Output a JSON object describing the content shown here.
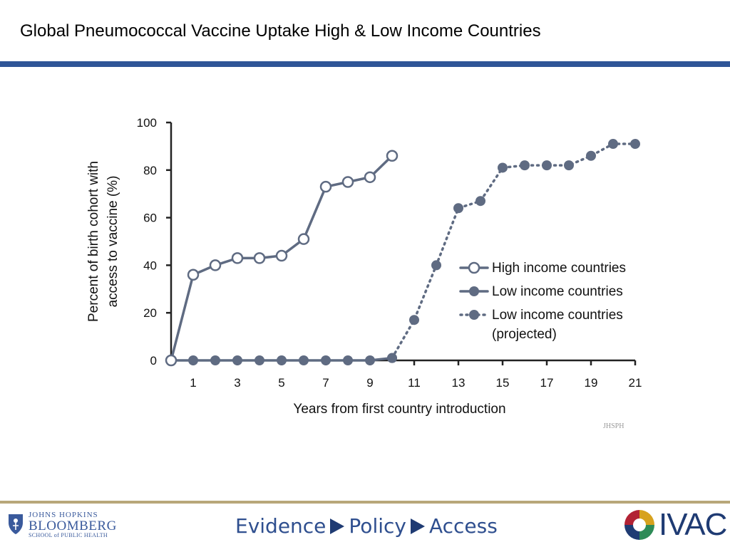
{
  "header": {
    "title": "Global Pneumococcal Vaccine Uptake High & Low Income Countries"
  },
  "chart_data": {
    "type": "line",
    "xlabel": "Years from first country introduction",
    "ylabel_line1": "Percent of birth cohort with",
    "ylabel_line2": "access to vaccine (%)",
    "xlim": [
      0,
      21
    ],
    "ylim": [
      0,
      100
    ],
    "xticks": [
      1,
      3,
      5,
      7,
      9,
      11,
      13,
      15,
      17,
      19,
      21
    ],
    "yticks": [
      0,
      20,
      40,
      60,
      80,
      100
    ],
    "grid": false,
    "legend_position": "right",
    "series": [
      {
        "name": "High income countries",
        "style": "solid-open",
        "color": "#5f6b82",
        "x": [
          0,
          1,
          2,
          3,
          4,
          5,
          6,
          7,
          8,
          9,
          10
        ],
        "y": [
          0,
          36,
          40,
          43,
          43,
          44,
          51,
          73,
          75,
          77,
          86
        ]
      },
      {
        "name": "Low income countries",
        "style": "solid-filled",
        "color": "#5f6b82",
        "x": [
          0,
          1,
          2,
          3,
          4,
          5,
          6,
          7,
          8,
          9,
          10
        ],
        "y": [
          0,
          0,
          0,
          0,
          0,
          0,
          0,
          0,
          0,
          0,
          1
        ]
      },
      {
        "name": "Low income countries",
        "name_line2": "(projected)",
        "style": "dotted-filled",
        "color": "#5f6b82",
        "x": [
          10,
          11,
          12,
          13,
          14,
          15,
          16,
          17,
          18,
          19,
          20,
          21
        ],
        "y": [
          1,
          17,
          40,
          64,
          67,
          81,
          82,
          82,
          82,
          86,
          91,
          91
        ]
      }
    ],
    "watermark": "JHSPH"
  },
  "footer": {
    "jh_line1": "JOHNS HOPKINS",
    "jh_line2": "BLOOMBERG",
    "jh_line3": "SCHOOL of PUBLIC HEALTH",
    "tag_evidence": "Evidence",
    "tag_policy": "Policy",
    "tag_access": "Access",
    "ivac": "IVAC"
  }
}
